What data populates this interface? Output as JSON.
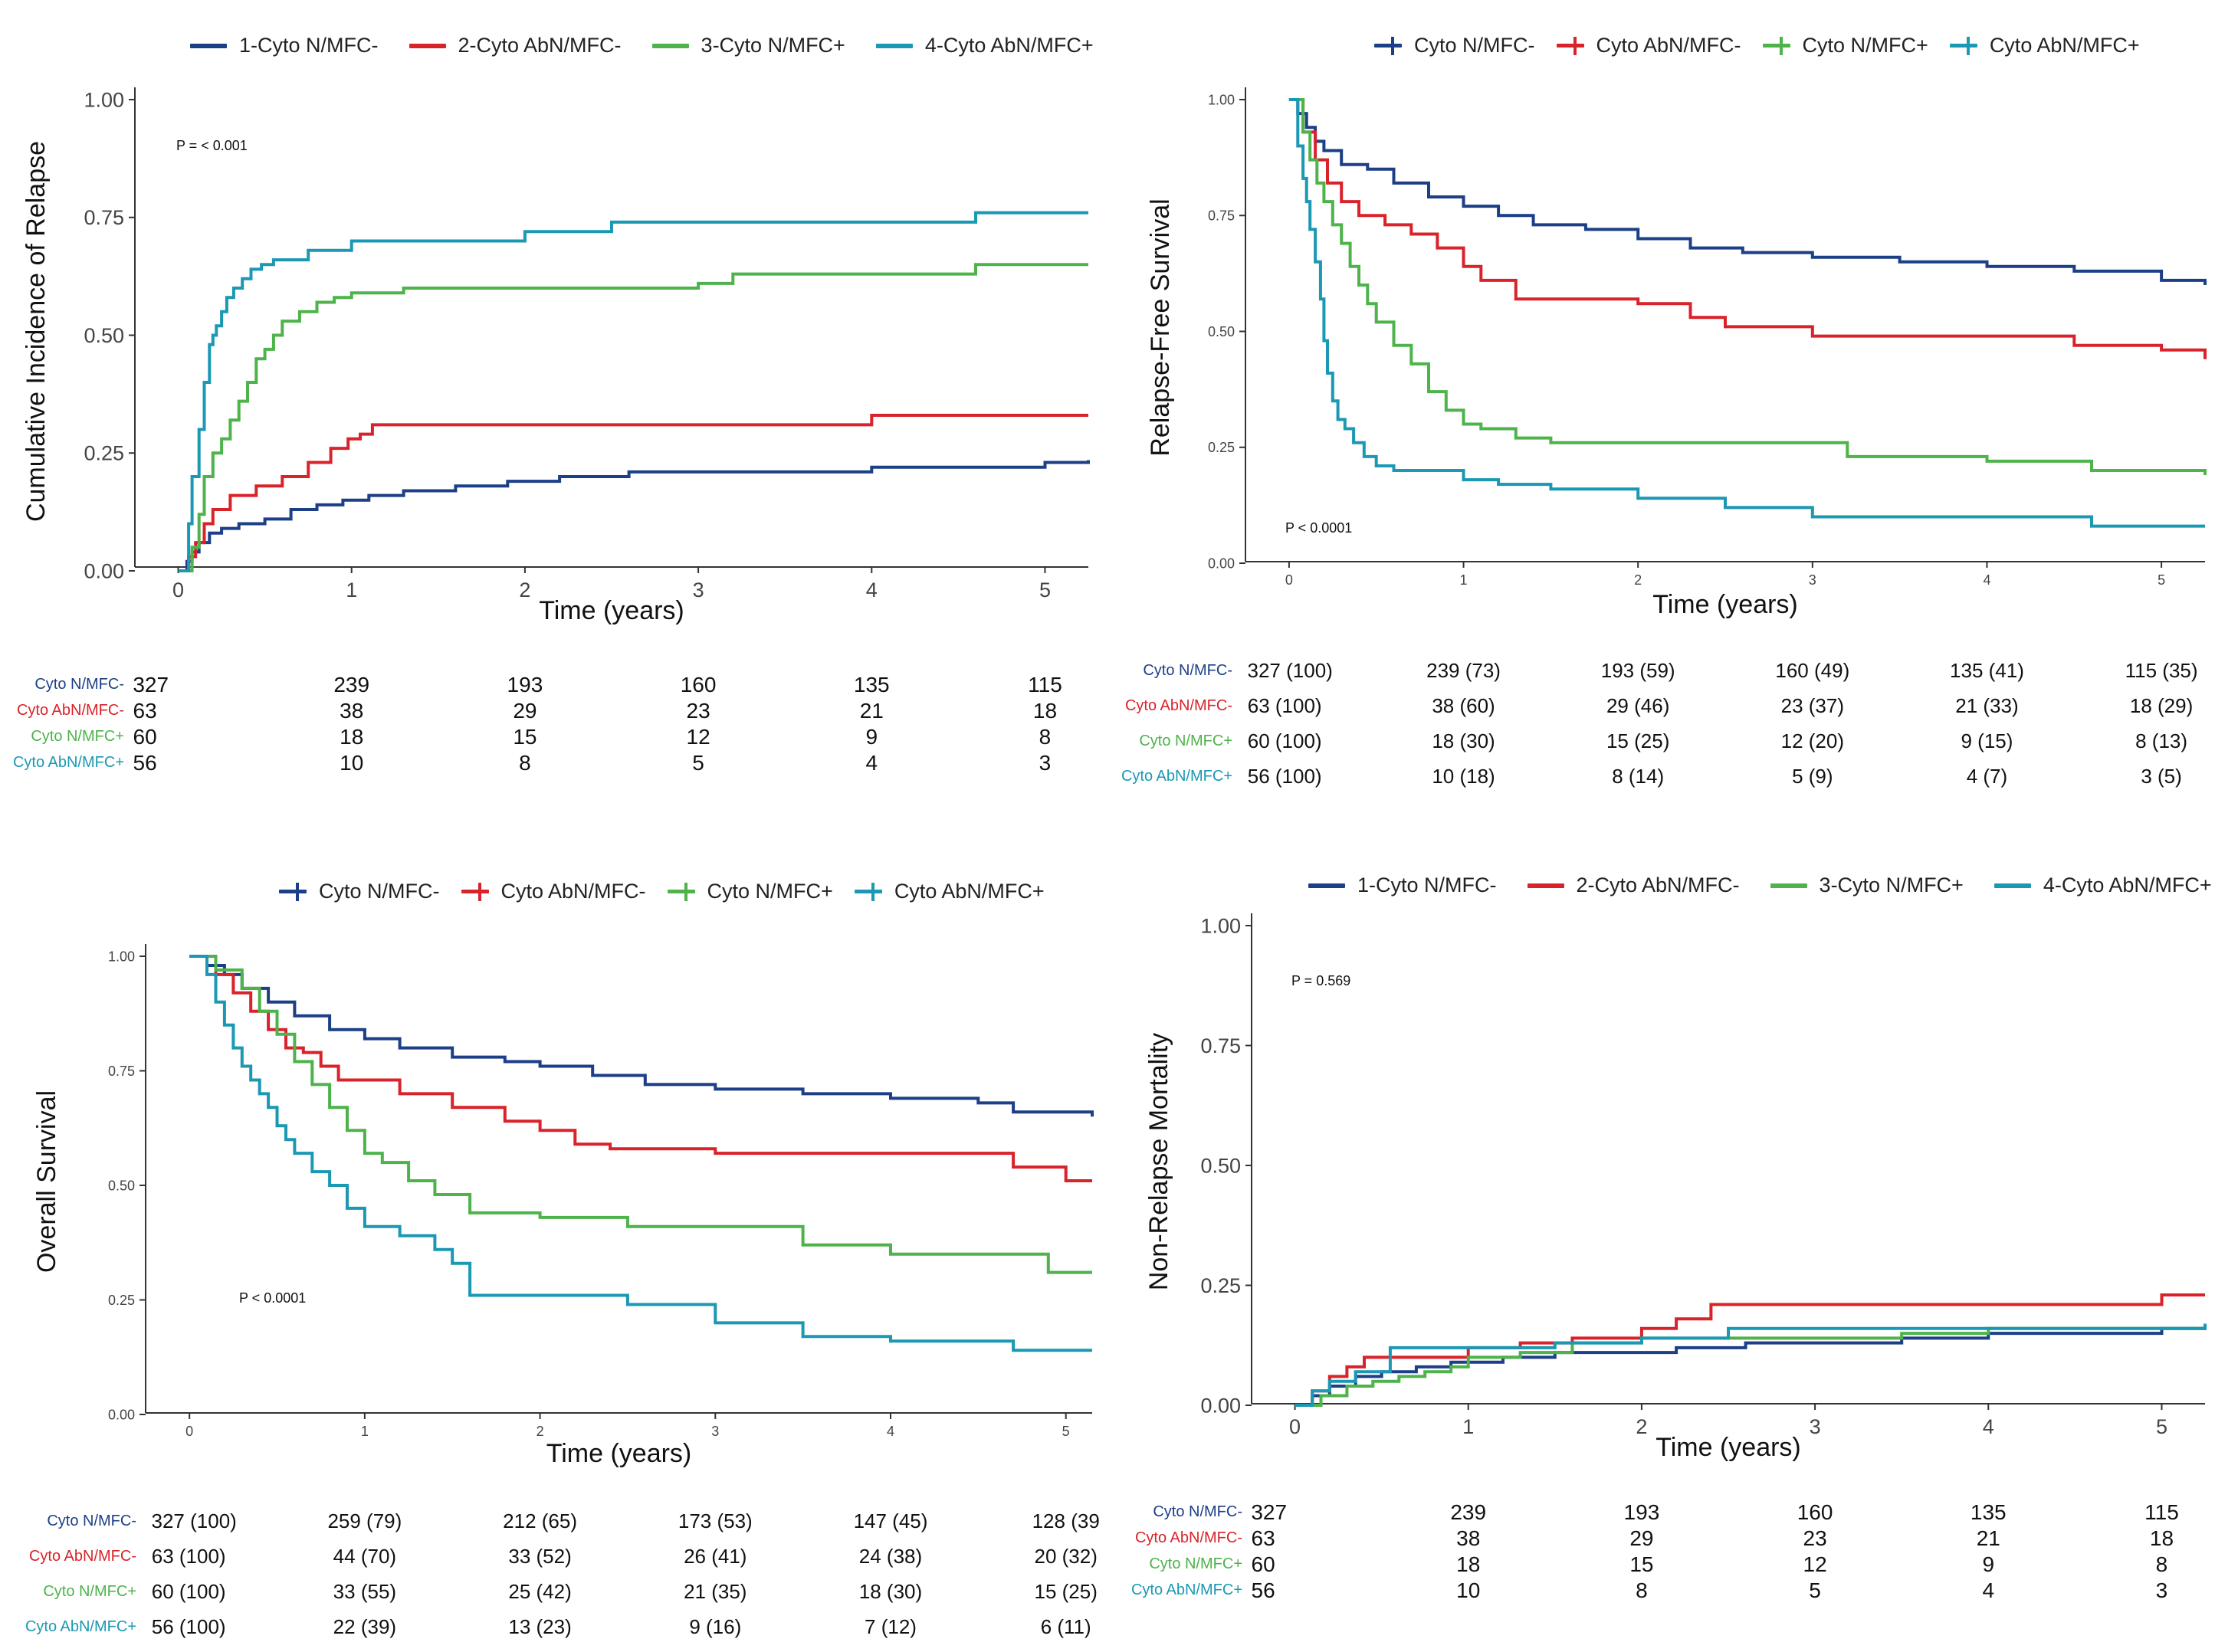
{
  "colors": {
    "g1": "#1c3f87",
    "g2": "#d9232a",
    "g3": "#4db34a",
    "g4": "#1b98b3"
  },
  "panels": [
    {
      "id": "cir",
      "legend_style": "line",
      "legend": [
        "1-Cyto N/MFC-",
        "2-Cyto AbN/MFC-",
        "3-Cyto N/MFC+",
        "4-Cyto AbN/MFC+"
      ],
      "ylabel": "Cumulative Incidence of Relapse",
      "xlabel": "Time (years)",
      "pvalue": "P = < 0.001",
      "risk_labels": [
        "Cyto N/MFC-",
        "Cyto AbN/MFC-",
        "Cyto N/MFC+",
        "Cyto AbN/MFC+"
      ],
      "risk_rows": [
        [
          "327",
          "239",
          "193",
          "160",
          "135",
          "115"
        ],
        [
          "63",
          "38",
          "29",
          "23",
          "21",
          "18"
        ],
        [
          "60",
          "18",
          "15",
          "12",
          "9",
          "8"
        ],
        [
          "56",
          "10",
          "8",
          "5",
          "4",
          "3"
        ]
      ]
    },
    {
      "id": "rfs",
      "legend_style": "cross",
      "legend": [
        "Cyto N/MFC-",
        "Cyto AbN/MFC-",
        "Cyto N/MFC+",
        "Cyto AbN/MFC+"
      ],
      "ylabel": "Relapse-Free Survival",
      "xlabel": "Time (years)",
      "pvalue": "P < 0.0001",
      "risk_labels": [
        "Cyto N/MFC-",
        "Cyto AbN/MFC-",
        "Cyto N/MFC+",
        "Cyto AbN/MFC+"
      ],
      "risk_rows": [
        [
          "327 (100)",
          "239 (73)",
          "193 (59)",
          "160 (49)",
          "135 (41)",
          "115 (35)"
        ],
        [
          "63 (100)",
          "38 (60)",
          "29 (46)",
          "23 (37)",
          "21 (33)",
          "18 (29)"
        ],
        [
          "60 (100)",
          "18 (30)",
          "15 (25)",
          "12 (20)",
          "9 (15)",
          "8 (13)"
        ],
        [
          "56 (100)",
          "10 (18)",
          "8 (14)",
          "5 (9)",
          "4 (7)",
          "3 (5)"
        ]
      ]
    },
    {
      "id": "os",
      "legend_style": "cross",
      "legend": [
        "Cyto N/MFC-",
        "Cyto AbN/MFC-",
        "Cyto N/MFC+",
        "Cyto AbN/MFC+"
      ],
      "ylabel": "Overall Survival",
      "xlabel": "Time (years)",
      "pvalue": "P < 0.0001",
      "risk_labels": [
        "Cyto N/MFC-",
        "Cyto AbN/MFC-",
        "Cyto N/MFC+",
        "Cyto AbN/MFC+"
      ],
      "risk_rows": [
        [
          "327 (100)",
          "259 (79)",
          "212 (65)",
          "173 (53)",
          "147 (45)",
          "128 (39"
        ],
        [
          "63 (100)",
          "44 (70)",
          "33 (52)",
          "26 (41)",
          "24 (38)",
          "20 (32)"
        ],
        [
          "60 (100)",
          "33 (55)",
          "25 (42)",
          "21 (35)",
          "18 (30)",
          "15 (25)"
        ],
        [
          "56 (100)",
          "22 (39)",
          "13 (23)",
          "9 (16)",
          "7 (12)",
          "6 (11)"
        ]
      ]
    },
    {
      "id": "nrm",
      "legend_style": "line",
      "legend": [
        "1-Cyto N/MFC-",
        "2-Cyto AbN/MFC-",
        "3-Cyto N/MFC+",
        "4-Cyto AbN/MFC+"
      ],
      "ylabel": "Non-Relapse Mortality",
      "xlabel": "Time (years)",
      "pvalue": "P = 0.569",
      "risk_labels": [
        "Cyto N/MFC-",
        "Cyto AbN/MFC-",
        "Cyto N/MFC+",
        "Cyto AbN/MFC+"
      ],
      "risk_rows": [
        [
          "327",
          "239",
          "193",
          "160",
          "135",
          "115"
        ],
        [
          "63",
          "38",
          "29",
          "23",
          "21",
          "18"
        ],
        [
          "60",
          "18",
          "15",
          "12",
          "9",
          "8"
        ],
        [
          "56",
          "10",
          "8",
          "5",
          "4",
          "3"
        ]
      ]
    }
  ],
  "chart_data": [
    {
      "type": "line",
      "step": true,
      "title": "",
      "xlabel": "Time (years)",
      "ylabel": "Cumulative Incidence of Relapse",
      "xlim": [
        -0.25,
        5.25
      ],
      "ylim": [
        0,
        1
      ],
      "xticks": [
        "0",
        "1",
        "2",
        "3",
        "4",
        "5"
      ],
      "yticks": [
        "0.00",
        "0.25",
        "0.50",
        "0.75",
        "1.00"
      ],
      "series": [
        {
          "name": "1-Cyto N/MFC-",
          "x": [
            0,
            0.05,
            0.08,
            0.12,
            0.18,
            0.25,
            0.35,
            0.5,
            0.65,
            0.8,
            0.95,
            1.1,
            1.3,
            1.6,
            1.9,
            2.2,
            2.6,
            3.0,
            3.6,
            4.0,
            4.5,
            5.0,
            5.25
          ],
          "y": [
            0,
            0.02,
            0.04,
            0.06,
            0.08,
            0.09,
            0.1,
            0.11,
            0.13,
            0.14,
            0.15,
            0.16,
            0.17,
            0.18,
            0.19,
            0.2,
            0.21,
            0.21,
            0.21,
            0.22,
            0.22,
            0.23,
            0.235
          ]
        },
        {
          "name": "2-Cyto AbN/MFC-",
          "x": [
            0,
            0.06,
            0.1,
            0.15,
            0.2,
            0.3,
            0.45,
            0.6,
            0.75,
            0.88,
            0.98,
            1.05,
            1.12,
            2.0,
            3.0,
            3.5,
            4.0,
            5.25
          ],
          "y": [
            0,
            0.03,
            0.06,
            0.1,
            0.13,
            0.16,
            0.18,
            0.2,
            0.23,
            0.26,
            0.28,
            0.29,
            0.31,
            0.31,
            0.31,
            0.31,
            0.33,
            0.33
          ]
        },
        {
          "name": "3-Cyto N/MFC+",
          "x": [
            0,
            0.08,
            0.12,
            0.15,
            0.2,
            0.25,
            0.3,
            0.35,
            0.4,
            0.45,
            0.5,
            0.55,
            0.6,
            0.7,
            0.8,
            0.9,
            1.0,
            1.3,
            2.0,
            3.0,
            3.2,
            4.0,
            4.6,
            5.25
          ],
          "y": [
            0,
            0.05,
            0.12,
            0.2,
            0.25,
            0.28,
            0.32,
            0.36,
            0.4,
            0.45,
            0.47,
            0.5,
            0.53,
            0.55,
            0.57,
            0.58,
            0.59,
            0.6,
            0.6,
            0.61,
            0.63,
            0.63,
            0.65,
            0.65
          ]
        },
        {
          "name": "4-Cyto AbN/MFC+",
          "x": [
            0,
            0.06,
            0.08,
            0.12,
            0.15,
            0.18,
            0.2,
            0.22,
            0.25,
            0.28,
            0.32,
            0.37,
            0.42,
            0.48,
            0.55,
            0.75,
            1.0,
            1.2,
            1.5,
            2.0,
            2.5,
            3.0,
            4.0,
            4.6,
            5.25
          ],
          "y": [
            0,
            0.1,
            0.2,
            0.3,
            0.4,
            0.48,
            0.5,
            0.52,
            0.55,
            0.58,
            0.6,
            0.62,
            0.64,
            0.65,
            0.66,
            0.68,
            0.7,
            0.7,
            0.7,
            0.72,
            0.74,
            0.74,
            0.74,
            0.76,
            0.76
          ]
        }
      ]
    },
    {
      "type": "line",
      "step": true,
      "title": "",
      "xlabel": "Time (years)",
      "ylabel": "Relapse-Free Survival",
      "xlim": [
        -0.25,
        5.25
      ],
      "ylim": [
        0,
        1
      ],
      "xticks": [
        "0",
        "1",
        "2",
        "3",
        "4",
        "5"
      ],
      "yticks": [
        "0.00",
        "0.25",
        "0.50",
        "0.75",
        "1.00"
      ],
      "series": [
        {
          "name": "Cyto N/MFC-",
          "x": [
            0,
            0.05,
            0.1,
            0.15,
            0.2,
            0.3,
            0.45,
            0.6,
            0.8,
            1.0,
            1.2,
            1.4,
            1.7,
            2.0,
            2.3,
            2.6,
            3.0,
            3.5,
            4.0,
            4.5,
            5.0,
            5.25
          ],
          "y": [
            1,
            0.97,
            0.94,
            0.91,
            0.89,
            0.86,
            0.85,
            0.82,
            0.79,
            0.77,
            0.75,
            0.73,
            0.72,
            0.7,
            0.68,
            0.67,
            0.66,
            0.65,
            0.64,
            0.63,
            0.61,
            0.6
          ]
        },
        {
          "name": "Cyto AbN/MFC-",
          "x": [
            0,
            0.08,
            0.15,
            0.22,
            0.3,
            0.4,
            0.55,
            0.7,
            0.85,
            1.0,
            1.1,
            1.3,
            2.0,
            2.3,
            2.5,
            3.0,
            4.0,
            4.5,
            5.0,
            5.25
          ],
          "y": [
            1,
            0.93,
            0.87,
            0.82,
            0.78,
            0.75,
            0.73,
            0.71,
            0.68,
            0.64,
            0.61,
            0.57,
            0.56,
            0.53,
            0.51,
            0.49,
            0.49,
            0.47,
            0.46,
            0.44
          ]
        },
        {
          "name": "Cyto N/MFC+",
          "x": [
            0,
            0.08,
            0.12,
            0.16,
            0.2,
            0.25,
            0.3,
            0.35,
            0.4,
            0.45,
            0.5,
            0.6,
            0.7,
            0.8,
            0.9,
            1.0,
            1.1,
            1.3,
            1.5,
            2.0,
            3.0,
            3.2,
            4.0,
            4.6,
            5.25
          ],
          "y": [
            1,
            0.93,
            0.87,
            0.82,
            0.78,
            0.73,
            0.69,
            0.64,
            0.6,
            0.56,
            0.52,
            0.47,
            0.43,
            0.37,
            0.33,
            0.3,
            0.29,
            0.27,
            0.26,
            0.26,
            0.26,
            0.23,
            0.22,
            0.2,
            0.19
          ]
        },
        {
          "name": "Cyto AbN/MFC+",
          "x": [
            0,
            0.05,
            0.08,
            0.1,
            0.12,
            0.15,
            0.18,
            0.2,
            0.22,
            0.25,
            0.28,
            0.32,
            0.37,
            0.43,
            0.5,
            0.6,
            0.8,
            1.0,
            1.2,
            1.5,
            2.0,
            2.5,
            3.0,
            4.0,
            4.6,
            5.25
          ],
          "y": [
            1,
            0.9,
            0.83,
            0.78,
            0.72,
            0.65,
            0.57,
            0.48,
            0.41,
            0.35,
            0.31,
            0.29,
            0.26,
            0.23,
            0.21,
            0.2,
            0.2,
            0.18,
            0.17,
            0.16,
            0.14,
            0.12,
            0.1,
            0.1,
            0.08,
            0.08
          ]
        }
      ]
    },
    {
      "type": "line",
      "step": true,
      "title": "",
      "xlabel": "Time (years)",
      "ylabel": "Overall Survival",
      "xlim": [
        -0.25,
        5.15
      ],
      "ylim": [
        0,
        1
      ],
      "xticks": [
        "0",
        "1",
        "2",
        "3",
        "4",
        "5"
      ],
      "yticks": [
        "0.00",
        "0.25",
        "0.50",
        "0.75",
        "1.00"
      ],
      "series": [
        {
          "name": "Cyto N/MFC-",
          "x": [
            0,
            0.1,
            0.2,
            0.3,
            0.45,
            0.6,
            0.8,
            1.0,
            1.2,
            1.5,
            1.8,
            2.0,
            2.3,
            2.6,
            3.0,
            3.5,
            4.0,
            4.5,
            4.7,
            5.15
          ],
          "y": [
            1,
            0.98,
            0.96,
            0.93,
            0.9,
            0.87,
            0.84,
            0.82,
            0.8,
            0.78,
            0.77,
            0.76,
            0.74,
            0.72,
            0.71,
            0.7,
            0.69,
            0.68,
            0.66,
            0.65
          ]
        },
        {
          "name": "Cyto AbN/MFC-",
          "x": [
            0,
            0.15,
            0.25,
            0.35,
            0.45,
            0.55,
            0.65,
            0.75,
            0.85,
            1.0,
            1.2,
            1.5,
            1.8,
            2.0,
            2.2,
            2.4,
            3.0,
            4.0,
            4.5,
            4.7,
            5.0,
            5.15
          ],
          "y": [
            1,
            0.96,
            0.92,
            0.88,
            0.84,
            0.8,
            0.79,
            0.76,
            0.73,
            0.73,
            0.7,
            0.67,
            0.64,
            0.62,
            0.59,
            0.58,
            0.57,
            0.57,
            0.57,
            0.54,
            0.51,
            0.51
          ]
        },
        {
          "name": "Cyto N/MFC+",
          "x": [
            0,
            0.15,
            0.3,
            0.4,
            0.5,
            0.6,
            0.7,
            0.8,
            0.9,
            1.0,
            1.1,
            1.25,
            1.4,
            1.6,
            2.0,
            2.5,
            3.0,
            3.5,
            4.0,
            4.5,
            4.9,
            5.15
          ],
          "y": [
            1,
            0.97,
            0.93,
            0.88,
            0.83,
            0.77,
            0.72,
            0.67,
            0.62,
            0.57,
            0.55,
            0.51,
            0.48,
            0.44,
            0.43,
            0.41,
            0.41,
            0.37,
            0.35,
            0.35,
            0.31,
            0.31
          ]
        },
        {
          "name": "Cyto AbN/MFC+",
          "x": [
            0,
            0.1,
            0.15,
            0.2,
            0.25,
            0.3,
            0.35,
            0.4,
            0.45,
            0.5,
            0.55,
            0.6,
            0.7,
            0.8,
            0.9,
            1.0,
            1.2,
            1.4,
            1.5,
            1.6,
            2.0,
            2.5,
            3.0,
            3.5,
            4.0,
            4.5,
            4.7,
            5.15
          ],
          "y": [
            1,
            0.96,
            0.9,
            0.85,
            0.8,
            0.76,
            0.73,
            0.7,
            0.67,
            0.63,
            0.6,
            0.57,
            0.53,
            0.5,
            0.45,
            0.41,
            0.39,
            0.36,
            0.33,
            0.26,
            0.26,
            0.24,
            0.2,
            0.17,
            0.16,
            0.16,
            0.14,
            0.14
          ]
        }
      ]
    },
    {
      "type": "line",
      "step": true,
      "title": "",
      "xlabel": "Time (years)",
      "ylabel": "Non-Relapse Mortality",
      "xlim": [
        -0.25,
        5.25
      ],
      "ylim": [
        0,
        1
      ],
      "xticks": [
        "0",
        "1",
        "2",
        "3",
        "4",
        "5"
      ],
      "yticks": [
        "0.00",
        "0.25",
        "0.50",
        "0.75",
        "1.00"
      ],
      "series": [
        {
          "name": "1-Cyto N/MFC-",
          "x": [
            0,
            0.1,
            0.2,
            0.35,
            0.5,
            0.7,
            0.9,
            1.2,
            1.5,
            1.8,
            2.2,
            2.6,
            3.0,
            3.5,
            4.0,
            4.5,
            5.0,
            5.25
          ],
          "y": [
            0,
            0.02,
            0.04,
            0.06,
            0.07,
            0.08,
            0.09,
            0.1,
            0.11,
            0.11,
            0.12,
            0.13,
            0.13,
            0.14,
            0.15,
            0.15,
            0.16,
            0.17
          ]
        },
        {
          "name": "2-Cyto AbN/MFC-",
          "x": [
            0,
            0.1,
            0.2,
            0.3,
            0.4,
            0.6,
            0.8,
            1.0,
            1.3,
            1.6,
            2.0,
            2.2,
            2.4,
            3.0,
            4.0,
            5.0,
            5.25
          ],
          "y": [
            0,
            0.03,
            0.06,
            0.08,
            0.1,
            0.1,
            0.1,
            0.12,
            0.13,
            0.14,
            0.16,
            0.18,
            0.21,
            0.21,
            0.21,
            0.23,
            0.23
          ]
        },
        {
          "name": "3-Cyto N/MFC+",
          "x": [
            0,
            0.15,
            0.3,
            0.45,
            0.6,
            0.75,
            0.9,
            1.0,
            1.3,
            1.6,
            2.0,
            3.0,
            3.5,
            4.0,
            5.25
          ],
          "y": [
            0,
            0.02,
            0.04,
            0.05,
            0.06,
            0.07,
            0.08,
            0.1,
            0.11,
            0.13,
            0.14,
            0.14,
            0.15,
            0.16,
            0.16
          ]
        },
        {
          "name": "4-Cyto AbN/MFC+",
          "x": [
            0,
            0.1,
            0.2,
            0.35,
            0.55,
            0.8,
            1.0,
            1.5,
            2.0,
            2.5,
            3.0,
            4.0,
            5.25
          ],
          "y": [
            0,
            0.03,
            0.05,
            0.07,
            0.12,
            0.12,
            0.12,
            0.13,
            0.14,
            0.16,
            0.16,
            0.16,
            0.17
          ]
        }
      ]
    }
  ]
}
